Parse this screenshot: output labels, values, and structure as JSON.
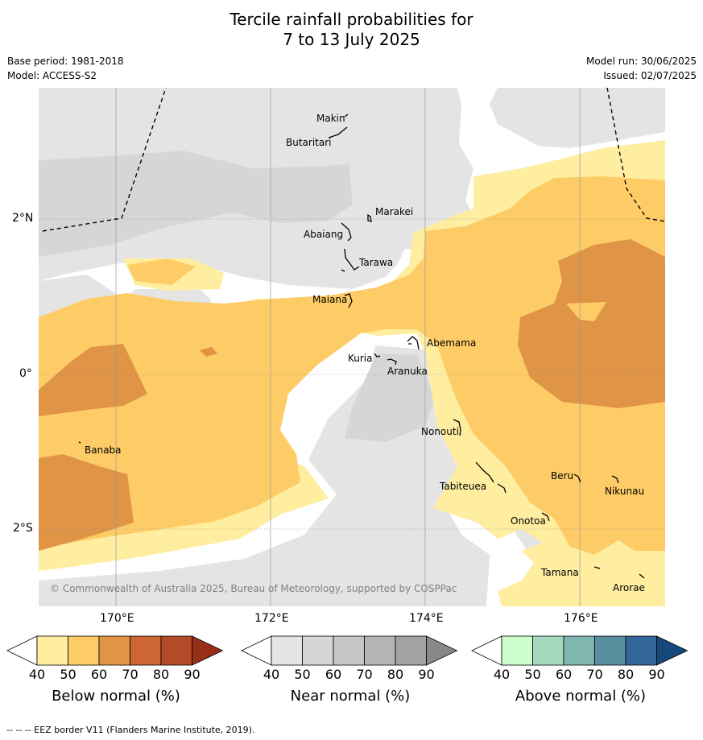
{
  "title": {
    "line1": "Tercile rainfall probabilities for",
    "line2": "7 to 13 July 2025"
  },
  "meta": {
    "base_period": "Base period: 1981-2018",
    "model": "Model: ACCESS-S2",
    "model_run": "Model run: 30/06/2025",
    "issued": "Issued: 02/07/2025"
  },
  "map": {
    "copyright": "© Commonwealth of Australia 2025, Bureau of Meteorology, supported by COSPPac",
    "lat_labels": [
      "2°N",
      "0°",
      "2°S"
    ],
    "lon_labels": [
      "170°E",
      "172°E",
      "174°E",
      "176°E"
    ],
    "places": [
      "Makin",
      "Butaritari",
      "Marakei",
      "Abaiang",
      "Tarawa",
      "Maiana",
      "Abemama",
      "Kuria",
      "Aranuka",
      "Banaba",
      "Nonouti",
      "Tabiteuea",
      "Beru",
      "Nikunau",
      "Onotoa",
      "Tamana",
      "Arorae"
    ]
  },
  "legend": {
    "ticks": [
      "40",
      "50",
      "60",
      "70",
      "80",
      "90"
    ],
    "bars": [
      {
        "label": "Below normal (%)",
        "colors": [
          "#ffeda0",
          "#fecc66",
          "#e09446",
          "#cc6633",
          "#b24b26",
          "#962f17"
        ]
      },
      {
        "label": "Near normal (%)",
        "colors": [
          "#e4e4e4",
          "#d6d6d6",
          "#c6c6c6",
          "#b4b4b4",
          "#a2a2a2",
          "#888888"
        ]
      },
      {
        "label": "Above normal (%)",
        "colors": [
          "#ccffcc",
          "#a5d8bc",
          "#80b6b0",
          "#5a8fa0",
          "#33669a",
          "#17487a"
        ]
      }
    ]
  },
  "footer": "--  --  -- EEZ border V11 (Flanders Marine Institute, 2019)."
}
